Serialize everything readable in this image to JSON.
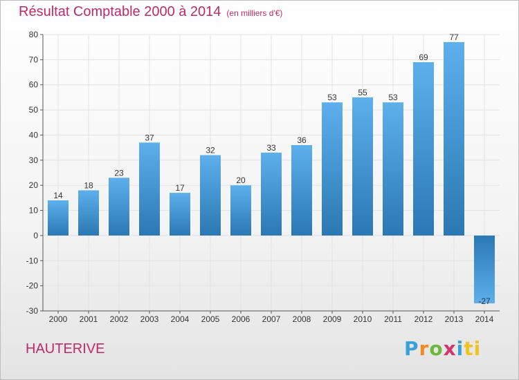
{
  "title": "Résultat Comptable 2000 à 2014",
  "subtitle": "(en milliers d'€)",
  "city": "HAUTERIVE",
  "logo": {
    "letters": [
      "P",
      "r",
      "o",
      "x",
      "i",
      "ti"
    ]
  },
  "colors": {
    "accent": "#c0286a",
    "bar_light": "#5db0ec",
    "bar_dark": "#2a78b4",
    "grid": "#e2e2e2"
  },
  "chart_data": {
    "type": "bar",
    "title": "Résultat Comptable 2000 à 2014",
    "xlabel": "",
    "ylabel": "",
    "categories": [
      "2000",
      "2001",
      "2002",
      "2003",
      "2004",
      "2005",
      "2006",
      "2007",
      "2008",
      "2009",
      "2010",
      "2011",
      "2012",
      "2013",
      "2014"
    ],
    "values": [
      14,
      18,
      23,
      37,
      17,
      32,
      20,
      33,
      36,
      53,
      55,
      53,
      69,
      77,
      -27
    ],
    "ylim": [
      -30,
      80
    ],
    "yticks": [
      -30,
      -20,
      -10,
      0,
      10,
      20,
      30,
      40,
      50,
      60,
      70,
      80
    ],
    "grid": true,
    "data_labels": true
  }
}
